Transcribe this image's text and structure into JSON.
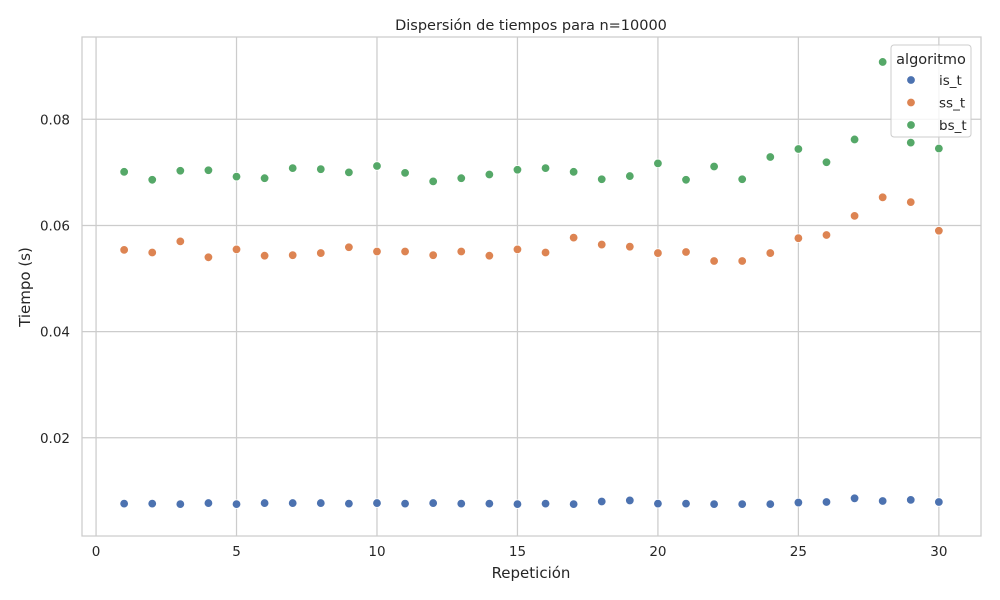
{
  "chart_data": {
    "type": "scatter",
    "title": "Dispersión de tiempos para n=10000",
    "xlabel": "Repetición",
    "ylabel": "Tiempo (s)",
    "xlim": [
      -0.5,
      31.5
    ],
    "ylim": [
      0.0015,
      0.0955
    ],
    "x_ticks": [
      0,
      5,
      10,
      15,
      20,
      25,
      30
    ],
    "x_tick_labels": [
      "0",
      "5",
      "10",
      "15",
      "20",
      "25",
      "30"
    ],
    "y_ticks": [
      0.02,
      0.04,
      0.06,
      0.08
    ],
    "y_tick_labels": [
      "0.02",
      "0.04",
      "0.06",
      "0.08"
    ],
    "grid": true,
    "legend": {
      "title": "algoritmo",
      "placement": "top-right"
    },
    "x": [
      1,
      2,
      3,
      4,
      5,
      6,
      7,
      8,
      9,
      10,
      11,
      12,
      13,
      14,
      15,
      16,
      17,
      18,
      19,
      20,
      21,
      22,
      23,
      24,
      25,
      26,
      27,
      28,
      29,
      30
    ],
    "series": [
      {
        "name": "is_t",
        "color": "#4c72b0",
        "values": [
          0.0076,
          0.0076,
          0.0075,
          0.0077,
          0.0075,
          0.0077,
          0.0077,
          0.0077,
          0.0076,
          0.0077,
          0.0076,
          0.0077,
          0.0076,
          0.0076,
          0.0075,
          0.0076,
          0.0075,
          0.008,
          0.0082,
          0.0076,
          0.0076,
          0.0075,
          0.0075,
          0.0075,
          0.0078,
          0.0079,
          0.0086,
          0.0081,
          0.0083,
          0.0079
        ]
      },
      {
        "name": "ss_t",
        "color": "#dd8452",
        "values": [
          0.0554,
          0.0549,
          0.057,
          0.054,
          0.0555,
          0.0543,
          0.0544,
          0.0548,
          0.0559,
          0.0551,
          0.0551,
          0.0544,
          0.0551,
          0.0543,
          0.0555,
          0.0549,
          0.0577,
          0.0564,
          0.056,
          0.0548,
          0.055,
          0.0533,
          0.0533,
          0.0548,
          0.0576,
          0.0582,
          0.0618,
          0.0653,
          0.0644,
          0.059
        ]
      },
      {
        "name": "bs_t",
        "color": "#55a868",
        "values": [
          0.0701,
          0.0686,
          0.0703,
          0.0704,
          0.0692,
          0.0689,
          0.0708,
          0.0706,
          0.07,
          0.0712,
          0.0699,
          0.0683,
          0.0689,
          0.0696,
          0.0705,
          0.0708,
          0.0701,
          0.0687,
          0.0693,
          0.0717,
          0.0686,
          0.0711,
          0.0687,
          0.0729,
          0.0744,
          0.0719,
          0.0762,
          0.0908,
          0.0756,
          0.0745
        ]
      }
    ]
  }
}
